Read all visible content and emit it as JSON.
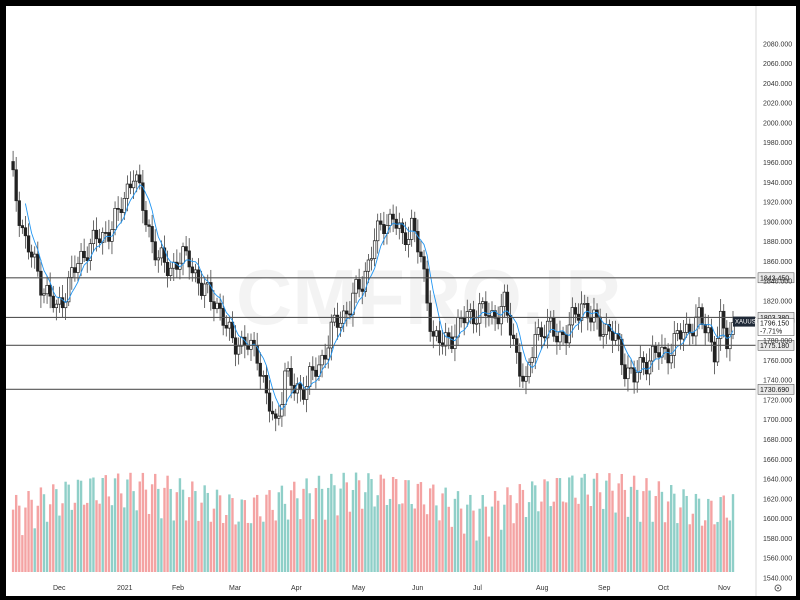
{
  "chart_data": {
    "type": "candlestick",
    "symbol": "XAUUSD",
    "watermark": "CMFRO.IR",
    "ylim": [
      1540,
      2100
    ],
    "y_ticks": [
      "2080.000",
      "2060.000",
      "2040.000",
      "2020.000",
      "2000.000",
      "1980.000",
      "1960.000",
      "1940.000",
      "1920.000",
      "1900.000",
      "1880.000",
      "1860.000",
      "1840.000",
      "1820.000",
      "1800.000",
      "1780.000",
      "1760.000",
      "1740.000",
      "1720.000",
      "1700.000",
      "1680.000",
      "1660.000",
      "1640.000",
      "1620.000",
      "1600.000",
      "1580.000",
      "1560.000",
      "1540.000"
    ],
    "x_ticks": [
      "Dec",
      "2021",
      "Feb",
      "Mar",
      "Apr",
      "May",
      "Jun",
      "Jul",
      "Aug",
      "Sep",
      "Oct",
      "Nov"
    ],
    "horizontal_levels": [
      {
        "label": "1843.450",
        "value": 1843.45
      },
      {
        "label": "1803.380",
        "value": 1803.38
      },
      {
        "label": "1775.180",
        "value": 1775.18
      },
      {
        "label": "1730.690",
        "value": 1730.69
      }
    ],
    "last_price": {
      "symbol": "XAUUSD",
      "price": "1796.150",
      "change": "-7.71%"
    },
    "close_path": [
      [
        0,
        1955
      ],
      [
        5,
        1880
      ],
      [
        10,
        1840
      ],
      [
        15,
        1810
      ],
      [
        20,
        1845
      ],
      [
        25,
        1875
      ],
      [
        30,
        1885
      ],
      [
        35,
        1905
      ],
      [
        38,
        1935
      ],
      [
        40,
        1950
      ],
      [
        43,
        1915
      ],
      [
        48,
        1860
      ],
      [
        52,
        1855
      ],
      [
        58,
        1865
      ],
      [
        62,
        1830
      ],
      [
        66,
        1825
      ],
      [
        70,
        1790
      ],
      [
        75,
        1775
      ],
      [
        80,
        1770
      ],
      [
        83,
        1720
      ],
      [
        86,
        1695
      ],
      [
        89,
        1745
      ],
      [
        92,
        1730
      ],
      [
        96,
        1735
      ],
      [
        100,
        1755
      ],
      [
        105,
        1795
      ],
      [
        110,
        1815
      ],
      [
        114,
        1840
      ],
      [
        118,
        1880
      ],
      [
        121,
        1900
      ],
      [
        124,
        1905
      ],
      [
        127,
        1880
      ],
      [
        130,
        1900
      ],
      [
        133,
        1860
      ],
      [
        137,
        1785
      ],
      [
        140,
        1775
      ],
      [
        144,
        1790
      ],
      [
        148,
        1805
      ],
      [
        152,
        1810
      ],
      [
        156,
        1805
      ],
      [
        160,
        1815
      ],
      [
        163,
        1780
      ],
      [
        165,
        1755
      ],
      [
        167,
        1730
      ],
      [
        170,
        1790
      ],
      [
        175,
        1790
      ],
      [
        180,
        1785
      ],
      [
        185,
        1820
      ],
      [
        188,
        1800
      ],
      [
        192,
        1795
      ],
      [
        196,
        1780
      ],
      [
        199,
        1755
      ],
      [
        202,
        1740
      ],
      [
        205,
        1760
      ],
      [
        209,
        1765
      ],
      [
        213,
        1770
      ],
      [
        217,
        1785
      ],
      [
        220,
        1795
      ],
      [
        223,
        1800
      ],
      [
        226,
        1790
      ],
      [
        228,
        1770
      ],
      [
        230,
        1795
      ],
      [
        232,
        1780
      ],
      [
        234,
        1796
      ]
    ],
    "volume_summary": "Daily volume bars, colored teal for up days and red for down days"
  },
  "colors": {
    "up": "#26a69a",
    "down": "#ef5350",
    "up_volume": "#8fcfc8",
    "down_volume": "#f4a3a3",
    "ma": "#2196f3",
    "ma2": "#ef9a9a",
    "level_line": "#555555"
  }
}
